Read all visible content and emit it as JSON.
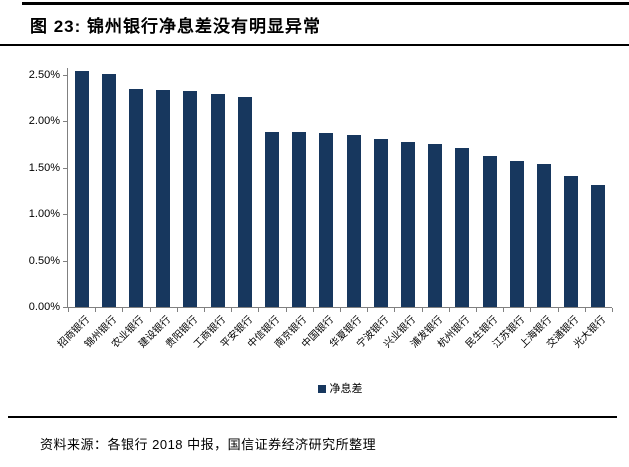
{
  "figure": {
    "title": "图 23: 锦州银行净息差没有明显异常",
    "source": "资料来源：各银行 2018 中报，国信证券经济研究所整理"
  },
  "chart_data": {
    "type": "bar",
    "title": "图 23: 锦州银行净息差没有明显异常",
    "legend": [
      "净息差"
    ],
    "legend_position": "bottom-center",
    "categories": [
      "招商银行",
      "锦州银行",
      "农业银行",
      "建设银行",
      "贵阳银行",
      "工商银行",
      "平安银行",
      "中信银行",
      "南京银行",
      "中国银行",
      "华夏银行",
      "宁波银行",
      "兴业银行",
      "浦发银行",
      "杭州银行",
      "民生银行",
      "江苏银行",
      "上海银行",
      "交通银行",
      "光大银行"
    ],
    "values": [
      2.54,
      2.51,
      2.35,
      2.34,
      2.33,
      2.3,
      2.26,
      1.89,
      1.89,
      1.88,
      1.85,
      1.81,
      1.78,
      1.76,
      1.71,
      1.63,
      1.57,
      1.54,
      1.41,
      1.31
    ],
    "unit": "%",
    "ylim": [
      0,
      2.5
    ],
    "ytick_values": [
      0,
      0.5,
      1.0,
      1.5,
      2.0,
      2.5
    ],
    "ytick_labels": [
      "0.00%",
      "0.50%",
      "1.00%",
      "1.50%",
      "2.00%",
      "2.50%"
    ],
    "grid": false,
    "bar_color": "#17375E",
    "axis_color": "#808080",
    "xlabel_rotation_deg": -45
  }
}
